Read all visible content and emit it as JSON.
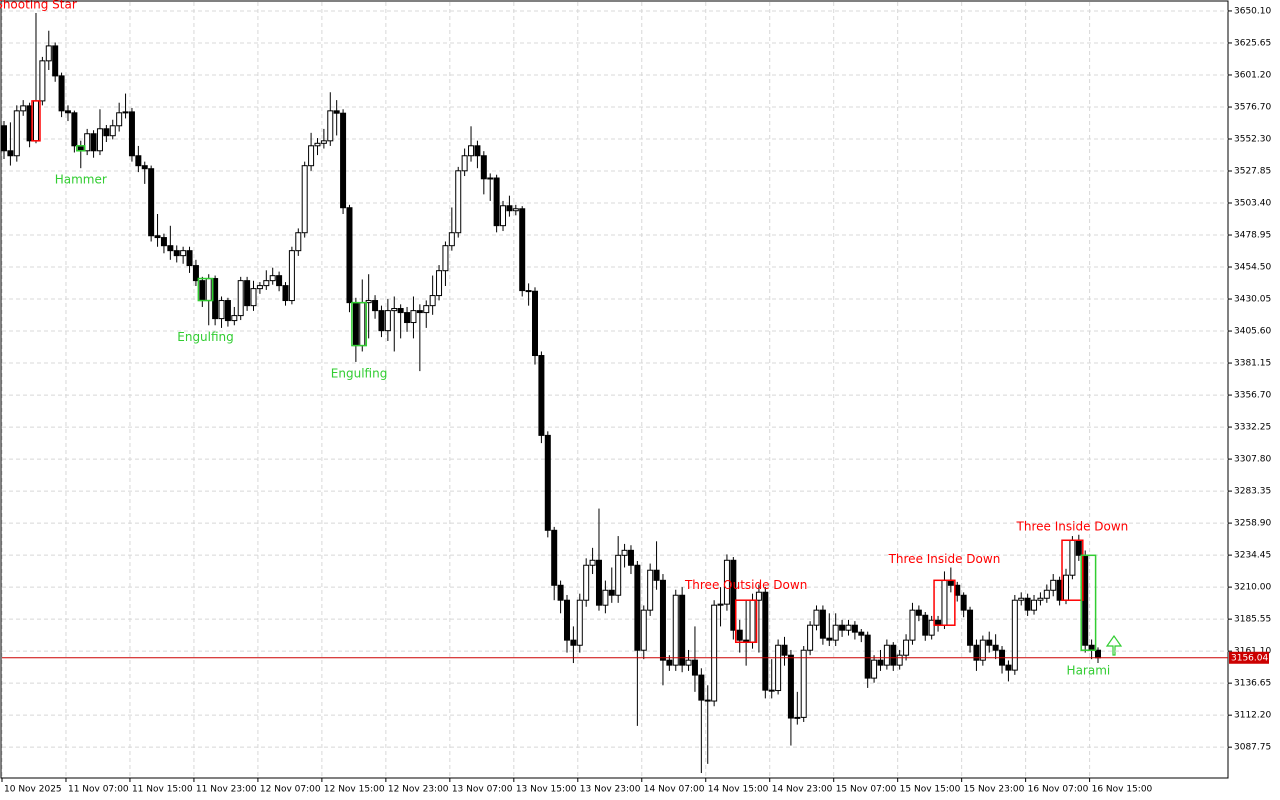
{
  "chart_data": {
    "type": "candlestick",
    "categories": [
      "10 Nov 2025",
      null,
      null,
      null,
      null,
      null,
      null,
      null,
      null,
      null,
      "11 Nov 07:00",
      null,
      null,
      null,
      null,
      null,
      null,
      null,
      null,
      null,
      "11 Nov 15:00",
      null,
      null,
      null,
      null,
      null,
      null,
      null,
      null,
      null,
      "11 Nov 23:00",
      null,
      null,
      null,
      null,
      null,
      null,
      null,
      null,
      null,
      "12 Nov 07:00",
      null,
      null,
      null,
      null,
      null,
      null,
      null,
      null,
      null,
      "12 Nov 15:00",
      null,
      null,
      null,
      null,
      null,
      null,
      null,
      null,
      null,
      "12 Nov 23:00",
      null,
      null,
      null,
      null,
      null,
      null,
      null,
      null,
      null,
      "13 Nov 07:00",
      null,
      null,
      null,
      null,
      null,
      null,
      null,
      null,
      null,
      "13 Nov 15:00",
      null,
      null,
      null,
      null,
      null,
      null,
      null,
      null,
      null,
      "13 Nov 23:00",
      null,
      null,
      null,
      null,
      null,
      null,
      null,
      null,
      null,
      "14 Nov 07:00",
      null,
      null,
      null,
      null,
      null,
      null,
      null,
      null,
      null,
      "14 Nov 15:00",
      null,
      null,
      null,
      null,
      null,
      null,
      null,
      null,
      null,
      "14 Nov 23:00",
      null,
      null,
      null,
      null,
      null,
      null,
      null,
      null,
      null,
      "15 Nov 07:00",
      null,
      null,
      null,
      null,
      null,
      null,
      null,
      null,
      null,
      "15 Nov 15:00",
      null,
      null,
      null,
      null,
      null,
      null,
      null,
      null,
      null,
      "15 Nov 23:00",
      null,
      null,
      null,
      null,
      null,
      null,
      null,
      null,
      null,
      "16 Nov 07:00",
      null,
      null,
      null,
      null,
      null,
      null,
      null,
      null,
      null,
      "16 Nov 15:00",
      null
    ],
    "open": [
      3562.4,
      3543.3,
      3539.5,
      3573.8,
      3577.6,
      3550.9,
      3581.4,
      3612.0,
      3623.4,
      3600.5,
      3573.8,
      3572.3,
      3547.1,
      3543.3,
      3556.3,
      3543.3,
      3560.1,
      3554.8,
      3562.4,
      3572.3,
      3573.0,
      3539.5,
      3531.9,
      3529.6,
      3478.4,
      3477.0,
      3470.8,
      3467.0,
      3463.2,
      3467.0,
      3455.6,
      3444.1,
      3428.9,
      3445.7,
      3415.1,
      3428.9,
      3413.6,
      3417.4,
      3444.1,
      3425.0,
      3438.0,
      3440.3,
      3444.1,
      3447.9,
      3440.3,
      3428.9,
      3467.0,
      3480.7,
      3531.9,
      3547.1,
      3549.0,
      3550.9,
      3573.8,
      3572.0,
      3499.8,
      3427.3,
      3394.5,
      3427.3,
      3428.9,
      3421.2,
      3405.9,
      3421.2,
      3422.8,
      3419.7,
      3412.1,
      3421.2,
      3419.7,
      3425.0,
      3432.7,
      3451.7,
      3470.8,
      3480.7,
      3528.0,
      3539.5,
      3547.1,
      3539.5,
      3521.9,
      3522.5,
      3486.1,
      3501.3,
      3497.5,
      3499.0,
      3436.5,
      3436.0,
      3386.9,
      3325.9,
      3253.4,
      3211.4,
      3200.0,
      3169.5,
      3165.6,
      3200.0,
      3226.7,
      3230.5,
      3196.2,
      3207.6,
      3203.8,
      3234.3,
      3238.1,
      3226.7,
      3161.8,
      3192.4,
      3222.9,
      3215.2,
      3154.2,
      3150.4,
      3203.8,
      3150.4,
      3154.2,
      3142.8,
      3123.7,
      3123.0,
      3196.2,
      3197.0,
      3230.5,
      3177.1,
      3169.5,
      3167.9,
      3200.0,
      3206.1,
      3131.3,
      3131.0,
      3165.6,
      3158.0,
      3110.0,
      3110.5,
      3161.8,
      3180.9,
      3192.4,
      3171.0,
      3169.5,
      3180.9,
      3177.1,
      3180.9,
      3175.6,
      3173.3,
      3140.5,
      3154.2,
      3150.4,
      3165.6,
      3150.4,
      3158.0,
      3169.5,
      3192.4,
      3188.5,
      3173.3,
      3184.7,
      3180.9,
      3215.2,
      3211.4,
      3203.8,
      3192.4,
      3165.6,
      3154.2,
      3169.5,
      3165.6,
      3161.8,
      3150.4,
      3146.6,
      3200.0,
      3201.5,
      3192.4,
      3200.0,
      3201.5,
      3207.6,
      3215.2,
      3200.0,
      3219.1,
      3245.8,
      3234.3,
      3165.6,
      3161.8
    ],
    "high": [
      3566,
      3565,
      3578,
      3582,
      3580,
      3648.5,
      3615,
      3635,
      3626,
      3603,
      3578,
      3574,
      3551,
      3560,
      3559,
      3575,
      3563,
      3567,
      3580,
      3587,
      3576,
      3547,
      3535,
      3532,
      3495,
      3480,
      3486,
      3471,
      3470,
      3470,
      3460,
      3447,
      3449,
      3448,
      3432,
      3431,
      3424,
      3447,
      3447,
      3444,
      3443,
      3452,
      3454,
      3451,
      3443,
      3470,
      3484,
      3535,
      3557,
      3553,
      3560,
      3588,
      3582,
      3575,
      3502,
      3431,
      3445,
      3449,
      3433,
      3425,
      3430,
      3432,
      3426,
      3424,
      3432,
      3426,
      3429,
      3448,
      3456,
      3474,
      3500,
      3531,
      3545,
      3562,
      3551,
      3543,
      3526,
      3525,
      3505,
      3509,
      3502,
      3501,
      3442,
      3439,
      3390,
      3329,
      3256,
      3215,
      3204,
      3180,
      3205,
      3232,
      3240,
      3270,
      3215,
      3225,
      3249,
      3243,
      3242,
      3230,
      3196,
      3228,
      3245,
      3220,
      3158,
      3208,
      3210,
      3162,
      3180,
      3148,
      3135,
      3200,
      3210,
      3235,
      3233,
      3185,
      3200,
      3205,
      3212,
      3210,
      3155,
      3170,
      3172,
      3162,
      3130,
      3165,
      3184,
      3196,
      3196,
      3190,
      3190,
      3185,
      3185,
      3184,
      3178,
      3176,
      3158,
      3162,
      3170,
      3168,
      3162,
      3174,
      3198,
      3196,
      3191,
      3188,
      3188,
      3222,
      3225,
      3214,
      3206,
      3195,
      3170,
      3173,
      3176,
      3174,
      3165,
      3154,
      3204,
      3206,
      3205,
      3204,
      3206,
      3212,
      3220,
      3218,
      3224,
      3249,
      3250,
      3238,
      3170,
      3164
    ],
    "low": [
      3537,
      3532,
      3535,
      3570,
      3546,
      3549,
      3578,
      3605,
      3596,
      3569,
      3566,
      3542,
      3530,
      3540,
      3538,
      3540,
      3550,
      3552,
      3558,
      3568,
      3535,
      3527,
      3518,
      3474,
      3470,
      3465,
      3460,
      3458,
      3457,
      3450,
      3440,
      3424,
      3410,
      3410,
      3408,
      3409,
      3410,
      3414,
      3421,
      3421,
      3434,
      3437,
      3441,
      3436,
      3425,
      3426,
      3463,
      3477,
      3528,
      3540,
      3545,
      3547,
      3555,
      3495,
      3420,
      3382,
      3390,
      3400,
      3415,
      3401,
      3398,
      3390,
      3400,
      3405,
      3400,
      3375,
      3408,
      3418,
      3429,
      3440,
      3467,
      3477,
      3524,
      3535,
      3530,
      3510,
      3505,
      3481,
      3482,
      3493,
      3494,
      3432,
      3425,
      3380,
      3320,
      3248,
      3200,
      3190,
      3160,
      3152,
      3160,
      3195,
      3220,
      3192,
      3190,
      3198,
      3198,
      3225,
      3220,
      3104,
      3155,
      3188,
      3208,
      3135,
      3146,
      3146,
      3145,
      3146,
      3130,
      3068,
      3075,
      3119,
      3180,
      3192,
      3170,
      3160,
      3150,
      3163,
      3160,
      3125,
      3125,
      3128,
      3150,
      3089,
      3105,
      3107,
      3158,
      3177,
      3166,
      3165,
      3165,
      3172,
      3173,
      3170,
      3168,
      3133,
      3137,
      3146,
      3147,
      3146,
      3147,
      3154,
      3166,
      3184,
      3169,
      3170,
      3176,
      3178,
      3206,
      3199,
      3187,
      3160,
      3146,
      3150,
      3160,
      3155,
      3144,
      3138,
      3143,
      3196,
      3188,
      3189,
      3196,
      3198,
      3203,
      3196,
      3197,
      3216,
      3230,
      3160,
      3155,
      3152
    ],
    "close": [
      3543.3,
      3539.5,
      3573.8,
      3577.6,
      3550.9,
      3581.4,
      3612.0,
      3623.4,
      3600.5,
      3573.8,
      3572.3,
      3547.1,
      3543.3,
      3556.3,
      3543.3,
      3560.1,
      3554.8,
      3562.4,
      3572.3,
      3573.0,
      3539.5,
      3531.9,
      3529.6,
      3478.4,
      3477.0,
      3470.8,
      3467.0,
      3463.2,
      3467.0,
      3455.6,
      3444.1,
      3428.9,
      3445.7,
      3415.1,
      3428.9,
      3413.6,
      3417.4,
      3444.1,
      3425.0,
      3438.0,
      3440.3,
      3444.1,
      3447.9,
      3440.3,
      3428.9,
      3467.0,
      3480.7,
      3531.9,
      3547.1,
      3549.0,
      3550.9,
      3573.8,
      3572.0,
      3499.8,
      3427.3,
      3394.5,
      3427.3,
      3428.9,
      3421.2,
      3405.9,
      3421.2,
      3422.8,
      3419.7,
      3412.1,
      3421.2,
      3419.7,
      3425.0,
      3432.7,
      3451.7,
      3470.8,
      3480.7,
      3528.0,
      3539.5,
      3547.1,
      3539.5,
      3521.9,
      3522.5,
      3486.1,
      3501.3,
      3497.5,
      3499.0,
      3436.5,
      3436.0,
      3386.9,
      3325.9,
      3253.4,
      3211.4,
      3200.0,
      3169.5,
      3165.6,
      3200.0,
      3226.7,
      3230.5,
      3196.2,
      3207.6,
      3203.8,
      3234.3,
      3238.1,
      3226.7,
      3161.8,
      3192.4,
      3222.9,
      3215.2,
      3154.2,
      3150.4,
      3203.8,
      3150.4,
      3154.2,
      3142.8,
      3123.7,
      3123.0,
      3196.2,
      3197.0,
      3230.5,
      3177.1,
      3169.5,
      3167.9,
      3200.0,
      3206.1,
      3131.3,
      3131.0,
      3165.6,
      3158.0,
      3110.0,
      3110.5,
      3161.8,
      3180.9,
      3192.4,
      3171.0,
      3169.5,
      3180.9,
      3177.1,
      3180.9,
      3175.6,
      3173.3,
      3140.5,
      3154.2,
      3150.4,
      3165.6,
      3150.4,
      3158.0,
      3169.5,
      3192.4,
      3188.5,
      3173.3,
      3184.7,
      3180.9,
      3215.2,
      3211.4,
      3203.8,
      3192.4,
      3165.6,
      3154.2,
      3169.5,
      3165.6,
      3161.8,
      3150.4,
      3146.6,
      3200.0,
      3201.5,
      3192.4,
      3200.0,
      3201.5,
      3207.6,
      3215.2,
      3200.0,
      3219.1,
      3245.8,
      3234.3,
      3165.6,
      3161.8,
      3156.04
    ],
    "up_color": "#ffffff",
    "down_color": "#000000",
    "ylim": [
      3064.2,
      3657.7
    ],
    "yticks": [
      {
        "value": 3650.1,
        "label": "3650.10"
      },
      3625.65,
      {
        "value": 3601.2,
        "label": "3601.20"
      },
      {
        "value": 3576.7,
        "label": "3576.70"
      },
      {
        "value": 3552.3,
        "label": "3552.30"
      },
      3527.85,
      {
        "value": 3503.4,
        "label": "3503.40"
      },
      3478.95,
      {
        "value": 3454.5,
        "label": "3454.50"
      },
      3430.05,
      {
        "value": 3405.6,
        "label": "3405.60"
      },
      3381.15,
      {
        "value": 3356.7,
        "label": "3356.70"
      },
      3332.25,
      {
        "value": 3307.8,
        "label": "3307.80"
      },
      3283.35,
      {
        "value": 3258.9,
        "label": "3258.90"
      },
      3234.45,
      {
        "value": 3210.0,
        "label": "3210.00"
      },
      3185.55,
      {
        "value": 3161.1,
        "label": "3161.10"
      },
      3136.65,
      {
        "value": 3112.2,
        "label": "3112.20"
      },
      3087.75
    ],
    "grid": true,
    "last_price": 3156.04,
    "last_price_color": "#cc0000",
    "patterns": [
      {
        "name": "Shooting Star",
        "color": "#ff0000",
        "from": 5,
        "to": 5
      },
      {
        "name": "Hammer",
        "color": "#32cd32",
        "from": 12,
        "to": 12
      },
      {
        "name": "Engulfing",
        "color": "#32cd32",
        "from": 31,
        "to": 32
      },
      {
        "name": "Engulfing",
        "color": "#32cd32",
        "from": 55,
        "to": 56
      },
      {
        "name": "Three Outside Down",
        "color": "#ff0000",
        "from": 115,
        "to": 117
      },
      {
        "name": "Three Inside Down",
        "color": "#ff0000",
        "from": 146,
        "to": 148
      },
      {
        "name": "Three Inside Down",
        "color": "#ff0000",
        "from": 166,
        "to": 168
      },
      {
        "name": "Harami",
        "color": "#32cd32",
        "from": 169,
        "to": 170
      }
    ]
  }
}
